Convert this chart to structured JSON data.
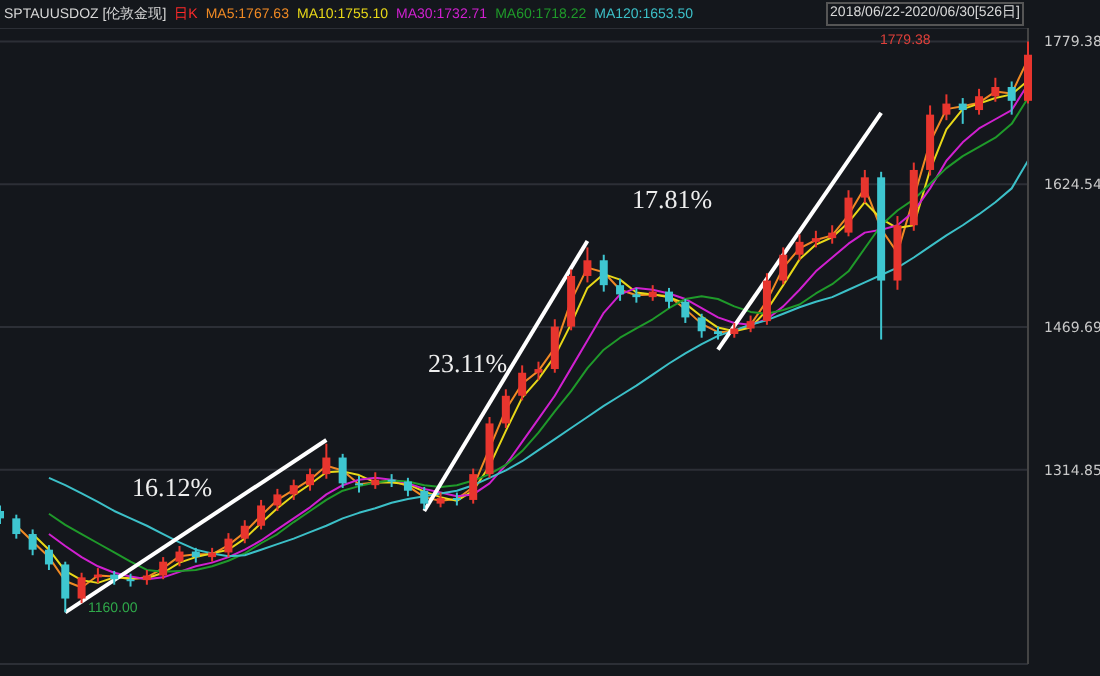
{
  "chart_data": {
    "type": "candlestick",
    "title": "SPTAUUSDOZ [伦敦金现]",
    "subtitle": "日K",
    "annotations": [
      "2018/06/22-2020/06/30[526日]",
      "16.12%",
      "23.11%",
      "17.81%",
      "1160.00",
      "1779.38"
    ],
    "categories": [
      null,
      null,
      null,
      null,
      null,
      null,
      null,
      null,
      null,
      null,
      null,
      null,
      null,
      null,
      null,
      null,
      null,
      null,
      null,
      null,
      null,
      null,
      null,
      null,
      null,
      null,
      null,
      null,
      null,
      null,
      null,
      null,
      null,
      null,
      null,
      null,
      null,
      null,
      null,
      null,
      null,
      null,
      null,
      null,
      null,
      null,
      null,
      null,
      null,
      null,
      null,
      null,
      null,
      null,
      null,
      null,
      null,
      null,
      null,
      null,
      null,
      null,
      null,
      null
    ],
    "ohlc": [
      [
        1270,
        1276,
        1256,
        1262
      ],
      [
        1262,
        1266,
        1240,
        1245
      ],
      [
        1245,
        1250,
        1222,
        1228
      ],
      [
        1228,
        1233,
        1206,
        1212
      ],
      [
        1212,
        1215,
        1160,
        1175
      ],
      [
        1175,
        1203,
        1170,
        1198
      ],
      [
        1198,
        1208,
        1192,
        1201
      ],
      [
        1201,
        1205,
        1190,
        1196
      ],
      [
        1196,
        1202,
        1188,
        1195
      ],
      [
        1195,
        1206,
        1190,
        1200
      ],
      [
        1200,
        1220,
        1196,
        1215
      ],
      [
        1215,
        1232,
        1210,
        1226
      ],
      [
        1226,
        1230,
        1214,
        1220
      ],
      [
        1220,
        1230,
        1215,
        1225
      ],
      [
        1225,
        1246,
        1220,
        1240
      ],
      [
        1240,
        1260,
        1235,
        1254
      ],
      [
        1254,
        1282,
        1250,
        1276
      ],
      [
        1276,
        1294,
        1270,
        1288
      ],
      [
        1288,
        1304,
        1282,
        1298
      ],
      [
        1298,
        1316,
        1292,
        1310
      ],
      [
        1310,
        1343,
        1305,
        1328
      ],
      [
        1328,
        1332,
        1295,
        1300
      ],
      [
        1300,
        1308,
        1290,
        1298
      ],
      [
        1298,
        1312,
        1294,
        1304
      ],
      [
        1304,
        1310,
        1296,
        1302
      ],
      [
        1302,
        1306,
        1286,
        1292
      ],
      [
        1292,
        1296,
        1272,
        1278
      ],
      [
        1278,
        1290,
        1274,
        1284
      ],
      [
        1284,
        1290,
        1276,
        1282
      ],
      [
        1282,
        1316,
        1278,
        1310
      ],
      [
        1310,
        1372,
        1306,
        1365
      ],
      [
        1365,
        1402,
        1360,
        1395
      ],
      [
        1395,
        1428,
        1390,
        1420
      ],
      [
        1420,
        1432,
        1412,
        1424
      ],
      [
        1424,
        1478,
        1420,
        1470
      ],
      [
        1470,
        1532,
        1466,
        1525
      ],
      [
        1525,
        1556,
        1518,
        1542
      ],
      [
        1542,
        1548,
        1508,
        1515
      ],
      [
        1515,
        1522,
        1498,
        1505
      ],
      [
        1505,
        1512,
        1496,
        1502
      ],
      [
        1502,
        1515,
        1498,
        1508
      ],
      [
        1508,
        1512,
        1490,
        1497
      ],
      [
        1497,
        1500,
        1474,
        1480
      ],
      [
        1480,
        1484,
        1458,
        1465
      ],
      [
        1465,
        1470,
        1456,
        1462
      ],
      [
        1462,
        1474,
        1458,
        1468
      ],
      [
        1468,
        1482,
        1464,
        1476
      ],
      [
        1476,
        1528,
        1472,
        1520
      ],
      [
        1520,
        1556,
        1516,
        1548
      ],
      [
        1548,
        1570,
        1542,
        1562
      ],
      [
        1562,
        1574,
        1556,
        1566
      ],
      [
        1566,
        1580,
        1560,
        1572
      ],
      [
        1572,
        1618,
        1568,
        1610
      ],
      [
        1610,
        1640,
        1604,
        1632
      ],
      [
        1632,
        1638,
        1456,
        1520
      ],
      [
        1520,
        1590,
        1510,
        1580
      ],
      [
        1580,
        1648,
        1574,
        1640
      ],
      [
        1640,
        1710,
        1634,
        1700
      ],
      [
        1700,
        1722,
        1694,
        1712
      ],
      [
        1712,
        1718,
        1690,
        1705
      ],
      [
        1705,
        1728,
        1700,
        1720
      ],
      [
        1720,
        1740,
        1714,
        1730
      ],
      [
        1730,
        1736,
        1700,
        1715
      ],
      [
        1715,
        1779.38,
        1712,
        1765
      ]
    ],
    "colors": [
      "#3ec6d0",
      "#3ec6d0",
      "#3ec6d0",
      "#3ec6d0",
      "#3ec6d0",
      "#e8352e",
      "#e8352e",
      "#3ec6d0",
      "#3ec6d0",
      "#e8352e",
      "#e8352e",
      "#e8352e",
      "#3ec6d0",
      "#e8352e",
      "#e8352e",
      "#e8352e",
      "#e8352e",
      "#e8352e",
      "#e8352e",
      "#e8352e",
      "#e8352e",
      "#3ec6d0",
      "#3ec6d0",
      "#e8352e",
      "#3ec6d0",
      "#3ec6d0",
      "#3ec6d0",
      "#e8352e",
      "#3ec6d0",
      "#e8352e",
      "#e8352e",
      "#e8352e",
      "#e8352e",
      "#e8352e",
      "#e8352e",
      "#e8352e",
      "#e8352e",
      "#3ec6d0",
      "#3ec6d0",
      "#3ec6d0",
      "#e8352e",
      "#3ec6d0",
      "#3ec6d0",
      "#3ec6d0",
      "#3ec6d0",
      "#e8352e",
      "#e8352e",
      "#e8352e",
      "#e8352e",
      "#e8352e",
      "#e8352e",
      "#e8352e",
      "#e8352e",
      "#e8352e",
      "#3ec6d0",
      "#e8352e",
      "#e8352e",
      "#e8352e",
      "#e8352e",
      "#3ec6d0",
      "#e8352e",
      "#e8352e",
      "#3ec6d0",
      "#e8352e"
    ],
    "series": [
      {
        "type": "line",
        "name": "MA5:1767.63",
        "color": "#f08a24",
        "values": [
          null,
          1254,
          1237,
          1220,
          1194,
          1187,
          1200,
          1199,
          1196,
          1198,
          1208,
          1221,
          1223,
          1223,
          1233,
          1247,
          1265,
          1282,
          1293,
          1304,
          1319,
          1314,
          1299,
          1301,
          1303,
          1297,
          1285,
          1281,
          1283,
          1296,
          1338,
          1380,
          1408,
          1422,
          1447,
          1498,
          1534,
          1529,
          1510,
          1504,
          1505,
          1503,
          1489,
          1473,
          1464,
          1465,
          1472,
          1498,
          1534,
          1555,
          1564,
          1569,
          1591,
          1621,
          1576,
          1550,
          1610,
          1670,
          1706,
          1709,
          1713,
          1725,
          1723,
          1760
        ]
      },
      {
        "type": "line",
        "name": "MA10:1755.10",
        "color": "#e8d818",
        "values": [
          null,
          null,
          1245,
          1228,
          1205,
          1195,
          1192,
          1198,
          1197,
          1197,
          1203,
          1214,
          1220,
          1224,
          1228,
          1240,
          1257,
          1273,
          1287,
          1299,
          1312,
          1313,
          1309,
          1301,
          1301,
          1299,
          1291,
          1285,
          1281,
          1292,
          1319,
          1357,
          1393,
          1413,
          1438,
          1473,
          1512,
          1527,
          1521,
          1507,
          1505,
          1502,
          1495,
          1481,
          1469,
          1465,
          1469,
          1488,
          1515,
          1543,
          1559,
          1567,
          1583,
          1605,
          1587,
          1577,
          1580,
          1640,
          1684,
          1706,
          1712,
          1718,
          1722,
          1737
        ]
      },
      {
        "type": "line",
        "name": "MA30:1732.71",
        "color": "#d020d0",
        "values": [
          null,
          null,
          null,
          1245,
          1232,
          1220,
          1210,
          1203,
          1199,
          1196,
          1198,
          1204,
          1210,
          1214,
          1220,
          1228,
          1238,
          1250,
          1262,
          1274,
          1288,
          1298,
          1304,
          1306,
          1304,
          1300,
          1294,
          1290,
          1286,
          1288,
          1300,
          1320,
          1345,
          1370,
          1395,
          1425,
          1455,
          1485,
          1505,
          1512,
          1510,
          1506,
          1500,
          1490,
          1480,
          1474,
          1472,
          1478,
          1492,
          1510,
          1530,
          1545,
          1560,
          1572,
          1575,
          1580,
          1595,
          1620,
          1650,
          1670,
          1685,
          1695,
          1705,
          1733
        ]
      },
      {
        "type": "line",
        "name": "MA60:1718.22",
        "color": "#1f9a2a",
        "values": [
          null,
          null,
          null,
          1267,
          1255,
          1245,
          1235,
          1225,
          1215,
          1206,
          1204,
          1205,
          1206,
          1210,
          1216,
          1224,
          1235,
          1245,
          1258,
          1270,
          1282,
          1292,
          1297,
          1301,
          1303,
          1302,
          1298,
          1296,
          1298,
          1303,
          1310,
          1320,
          1335,
          1355,
          1378,
          1400,
          1425,
          1445,
          1458,
          1468,
          1478,
          1490,
          1500,
          1503,
          1500,
          1492,
          1486,
          1484,
          1488,
          1494,
          1506,
          1516,
          1530,
          1555,
          1580,
          1596,
          1608,
          1625,
          1642,
          1655,
          1665,
          1675,
          1690,
          1718
        ]
      },
      {
        "type": "line",
        "name": "MA120:1653.50",
        "color": "#3cc0c8",
        "values": [
          null,
          null,
          null,
          1306,
          1298,
          1289,
          1280,
          1270,
          1262,
          1254,
          1245,
          1236,
          1228,
          1224,
          1221,
          1222,
          1228,
          1234,
          1240,
          1247,
          1254,
          1262,
          1268,
          1273,
          1279,
          1283,
          1286,
          1289,
          1292,
          1298,
          1306,
          1314,
          1324,
          1336,
          1348,
          1360,
          1372,
          1384,
          1395,
          1406,
          1418,
          1430,
          1441,
          1451,
          1460,
          1466,
          1472,
          1477,
          1484,
          1491,
          1497,
          1502,
          1510,
          1518,
          1526,
          1534,
          1545,
          1557,
          1569,
          1580,
          1592,
          1605,
          1620,
          1650
        ]
      },
      {
        "type": "line",
        "color": "#ffffff",
        "values": [
          null,
          null,
          null,
          null,
          1160,
          null,
          null,
          null,
          null,
          null,
          null,
          null,
          null,
          null,
          null,
          null,
          null,
          null,
          null,
          null,
          1347,
          null,
          null,
          null,
          null,
          null,
          null,
          null,
          null,
          null,
          null,
          null,
          null,
          null,
          null,
          null,
          null,
          null,
          null,
          null,
          null,
          null,
          null,
          null,
          null,
          null,
          null,
          null,
          null,
          null,
          null,
          null,
          null,
          null,
          null,
          null,
          null,
          null,
          null,
          null,
          null,
          null,
          null,
          null
        ]
      },
      {
        "type": "line",
        "color": "#ffffff",
        "values": [
          null,
          null,
          null,
          null,
          null,
          null,
          null,
          null,
          null,
          null,
          null,
          null,
          null,
          null,
          null,
          null,
          null,
          null,
          null,
          null,
          null,
          null,
          null,
          null,
          null,
          null,
          1270,
          null,
          null,
          null,
          null,
          null,
          null,
          null,
          null,
          null,
          1563,
          null,
          null,
          null,
          null,
          null,
          null,
          null,
          null,
          null,
          null,
          null,
          null,
          null,
          null,
          null,
          null,
          null,
          null,
          null,
          null,
          null,
          null,
          null,
          null,
          null,
          null,
          null
        ]
      },
      {
        "type": "line",
        "color": "#ffffff",
        "values": [
          null,
          null,
          null,
          null,
          null,
          null,
          null,
          null,
          null,
          null,
          null,
          null,
          null,
          null,
          null,
          null,
          null,
          null,
          null,
          null,
          null,
          null,
          null,
          null,
          null,
          null,
          null,
          null,
          null,
          null,
          null,
          null,
          null,
          null,
          null,
          null,
          null,
          null,
          null,
          null,
          null,
          null,
          null,
          null,
          1445,
          null,
          null,
          null,
          null,
          null,
          null,
          null,
          null,
          null,
          1702,
          null,
          null,
          null,
          null,
          null,
          null,
          null,
          null,
          null
        ]
      }
    ],
    "ylim": [
      1104,
      1794
    ],
    "yticks": [
      1314.85,
      1469.69,
      1624.54,
      1779.38
    ],
    "grid": "y",
    "legend": "top",
    "tick_labels": "y"
  }
}
